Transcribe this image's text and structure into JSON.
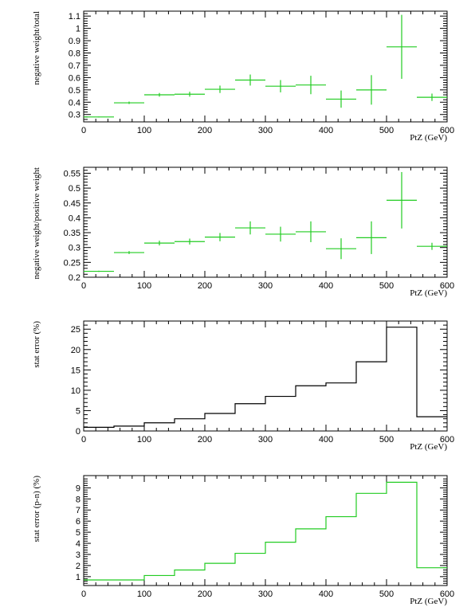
{
  "chart_data": [
    {
      "type": "scatter",
      "style": "error-bars",
      "color": "#22cc22",
      "xlabel": "PtZ (GeV)",
      "ylabel": "negative weight/total",
      "xlim": [
        0,
        600
      ],
      "ylim": [
        0.24,
        1.14
      ],
      "xticks": [
        "0",
        "100",
        "200",
        "300",
        "400",
        "500",
        "600"
      ],
      "yticks": [
        "0.3",
        "0.4",
        "0.5",
        "0.6",
        "0.7",
        "0.8",
        "0.9",
        "1",
        "1.1"
      ],
      "x": [
        25,
        75,
        125,
        175,
        225,
        275,
        325,
        375,
        425,
        475,
        525,
        575
      ],
      "xerr": [
        25,
        25,
        25,
        25,
        25,
        25,
        25,
        25,
        25,
        25,
        25,
        25
      ],
      "y": [
        0.28,
        0.395,
        0.46,
        0.465,
        0.505,
        0.58,
        0.53,
        0.54,
        0.425,
        0.5,
        0.85,
        0.44
      ],
      "yerr": [
        0.003,
        0.01,
        0.015,
        0.02,
        0.03,
        0.045,
        0.05,
        0.075,
        0.07,
        0.12,
        0.26,
        0.03
      ]
    },
    {
      "type": "scatter",
      "style": "error-bars",
      "color": "#22cc22",
      "xlabel": "PtZ (GeV)",
      "ylabel": "negative weight/positive weight",
      "xlim": [
        0,
        600
      ],
      "ylim": [
        0.2,
        0.57
      ],
      "xticks": [
        "0",
        "100",
        "200",
        "300",
        "400",
        "500",
        "600"
      ],
      "yticks": [
        "0.2",
        "0.25",
        "0.3",
        "0.35",
        "0.4",
        "0.45",
        "0.5",
        "0.55"
      ],
      "x": [
        25,
        75,
        125,
        175,
        225,
        275,
        325,
        375,
        425,
        475,
        525,
        575
      ],
      "xerr": [
        25,
        25,
        25,
        25,
        25,
        25,
        25,
        25,
        25,
        25,
        25,
        25
      ],
      "y": [
        0.22,
        0.283,
        0.315,
        0.32,
        0.335,
        0.366,
        0.345,
        0.353,
        0.296,
        0.333,
        0.459,
        0.304
      ],
      "yerr": [
        0.002,
        0.005,
        0.008,
        0.01,
        0.014,
        0.022,
        0.025,
        0.035,
        0.035,
        0.055,
        0.095,
        0.012
      ]
    },
    {
      "type": "histogram",
      "color": "#000000",
      "xlabel": "PtZ (GeV)",
      "ylabel": "stat error (%)",
      "xlim": [
        0,
        600
      ],
      "ylim": [
        0,
        27
      ],
      "xticks": [
        "0",
        "100",
        "200",
        "300",
        "400",
        "500",
        "600"
      ],
      "yticks": [
        "0",
        "5",
        "10",
        "15",
        "20",
        "25"
      ],
      "bin_edges": [
        0,
        50,
        100,
        150,
        200,
        250,
        300,
        350,
        400,
        450,
        500,
        550,
        600
      ],
      "values": [
        0.9,
        1.2,
        2.0,
        3.0,
        4.3,
        6.7,
        8.5,
        11.1,
        11.8,
        17.0,
        25.5,
        3.5
      ]
    },
    {
      "type": "histogram",
      "color": "#22cc22",
      "xlabel": "PtZ (GeV)",
      "ylabel": "stat error (p-n) (%)",
      "xlim": [
        0,
        600
      ],
      "ylim": [
        0.2,
        10.1
      ],
      "xticks": [
        "0",
        "100",
        "200",
        "300",
        "400",
        "500",
        "600"
      ],
      "yticks": [
        "1",
        "2",
        "3",
        "4",
        "5",
        "6",
        "7",
        "8",
        "9"
      ],
      "bin_edges": [
        0,
        50,
        100,
        150,
        200,
        250,
        300,
        350,
        400,
        450,
        500,
        550,
        600
      ],
      "values": [
        0.7,
        0.7,
        1.1,
        1.6,
        2.2,
        3.1,
        4.1,
        5.3,
        6.4,
        8.5,
        9.5,
        1.8
      ]
    }
  ]
}
